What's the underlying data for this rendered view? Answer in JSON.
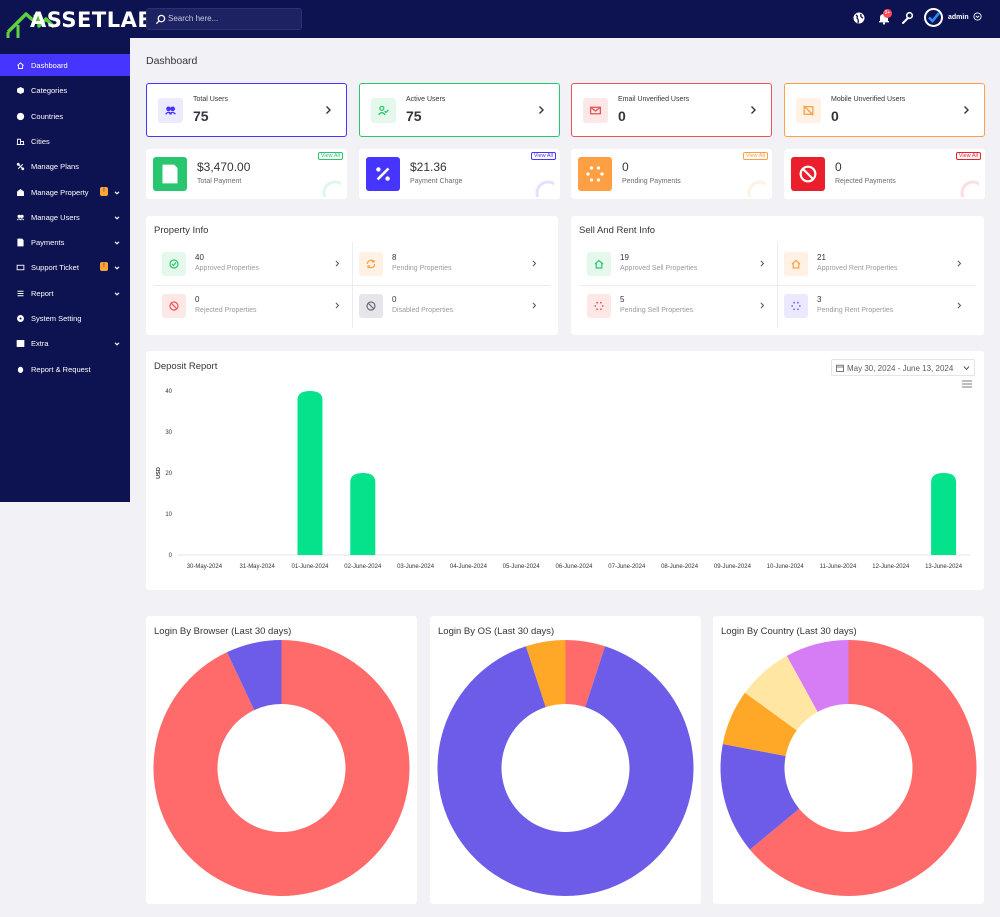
{
  "brand": {
    "name": "ASSETLAB"
  },
  "header": {
    "search_placeholder": "Search here...",
    "notification_count": "9+",
    "user_name": "admin"
  },
  "sidebar": {
    "items": [
      {
        "label": "Dashboard",
        "icon": "home-icon",
        "active": true
      },
      {
        "label": "Categories",
        "icon": "box-icon"
      },
      {
        "label": "Countries",
        "icon": "globe-icon"
      },
      {
        "label": "Cities",
        "icon": "city-icon"
      },
      {
        "label": "Manage Plans",
        "icon": "plans-icon"
      },
      {
        "label": "Manage Property",
        "icon": "building-icon",
        "badge": "!",
        "dropdown": true
      },
      {
        "label": "Manage Users",
        "icon": "users-icon",
        "dropdown": true
      },
      {
        "label": "Payments",
        "icon": "payments-icon",
        "dropdown": true
      },
      {
        "label": "Support Ticket",
        "icon": "ticket-icon",
        "badge": "!",
        "dropdown": true
      },
      {
        "label": "Report",
        "icon": "list-icon",
        "dropdown": true
      },
      {
        "label": "System Setting",
        "icon": "settings-icon"
      },
      {
        "label": "Extra",
        "icon": "server-icon",
        "dropdown": true
      },
      {
        "label": "Report & Request",
        "icon": "bug-icon"
      }
    ]
  },
  "page": {
    "title": "Dashboard"
  },
  "widgets": [
    {
      "label": "Total Users",
      "value": "75",
      "color": "#4634ff",
      "bg": "#eceaff",
      "icon": "users-icon"
    },
    {
      "label": "Active Users",
      "value": "75",
      "color": "#28c76f",
      "bg": "#e4f8ec",
      "icon": "user-check-icon"
    },
    {
      "label": "Email Unverified Users",
      "value": "0",
      "color": "#ea5455",
      "bg": "#fde7e7",
      "icon": "envelope-icon"
    },
    {
      "label": "Mobile Unverified Users",
      "value": "0",
      "color": "#ff9f43",
      "bg": "#fff1e3",
      "icon": "mobile-off-icon"
    }
  ],
  "payments": [
    {
      "value": "$3,470.00",
      "label": "Total Payment",
      "view": "View All",
      "color": "#28c76f",
      "icon": "hand-money-icon"
    },
    {
      "value": "$21.36",
      "label": "Payment Charge",
      "view": "View All",
      "color": "#4634ff",
      "icon": "percent-icon"
    },
    {
      "value": "0",
      "label": "Pending Payments",
      "view": "View All",
      "color": "#ff9f43",
      "icon": "spinner-icon"
    },
    {
      "value": "0",
      "label": "Rejected Payments",
      "view": "View All",
      "color": "#ea1e2c",
      "icon": "ban-icon"
    }
  ],
  "property_info": {
    "title": "Property Info",
    "cells": [
      {
        "value": "40",
        "label": "Approved Properties",
        "color": "#28c76f",
        "bg": "#e4f8ec",
        "icon": "check-circle-icon"
      },
      {
        "value": "8",
        "label": "Pending Properties",
        "color": "#ff9f43",
        "bg": "#fff1e3",
        "icon": "sync-icon"
      },
      {
        "value": "0",
        "label": "Rejected Properties",
        "color": "#ea5455",
        "bg": "#fde7e7",
        "icon": "ban-icon"
      },
      {
        "value": "0",
        "label": "Disabled Properties",
        "color": "#6b6b76",
        "bg": "#e6e6ea",
        "icon": "ban-icon"
      }
    ]
  },
  "sell_rent_info": {
    "title": "Sell And Rent Info",
    "cells": [
      {
        "value": "19",
        "label": "Approved Sell Properties",
        "color": "#28c76f",
        "bg": "#e4f8ec",
        "icon": "home-icon"
      },
      {
        "value": "21",
        "label": "Approved Rent Properties",
        "color": "#ff9f43",
        "bg": "#fff1e3",
        "icon": "home-icon"
      },
      {
        "value": "5",
        "label": "Pending Sell Properties",
        "color": "#ea5455",
        "bg": "#fde7e7",
        "icon": "spinner-icon"
      },
      {
        "value": "3",
        "label": "Pending Rent Properties",
        "color": "#7367f0",
        "bg": "#ebe9ff",
        "icon": "spinner-icon"
      }
    ]
  },
  "deposit_report": {
    "title": "Deposit Report",
    "date_range": "May 30, 2024 - June 13, 2024"
  },
  "chart_data": [
    {
      "type": "bar",
      "title": "Deposit Report",
      "ylabel": "USD",
      "ylim": [
        0,
        40
      ],
      "yticks": [
        "0",
        "10",
        "20",
        "30",
        "40"
      ],
      "categories": [
        "30-May-2024",
        "31-May-2024",
        "01-June-2024",
        "02-June-2024",
        "03-June-2024",
        "04-June-2024",
        "05-June-2024",
        "06-June-2024",
        "07-June-2024",
        "08-June-2024",
        "09-June-2024",
        "10-June-2024",
        "11-June-2024",
        "12-June-2024",
        "13-June-2024"
      ],
      "values": [
        0,
        0,
        40,
        20,
        0,
        0,
        0,
        0,
        0,
        0,
        0,
        0,
        0,
        0,
        20
      ],
      "color": "#04e38c",
      "grid": false
    },
    {
      "type": "pie",
      "title": "Login By Browser (Last 30 days)",
      "slices": [
        {
          "value": 93,
          "color": "#ff6b6b"
        },
        {
          "value": 7,
          "color": "#6c5ce7"
        }
      ]
    },
    {
      "type": "pie",
      "title": "Login By OS (Last 30 days)",
      "slices": [
        {
          "value": 5,
          "color": "#ff6b6b"
        },
        {
          "value": 90,
          "color": "#6c5ce7"
        },
        {
          "value": 5,
          "color": "#ffa726"
        }
      ]
    },
    {
      "type": "pie",
      "title": "Login By Country (Last 30 days)",
      "slices": [
        {
          "value": 64,
          "color": "#ff6b6b"
        },
        {
          "value": 14,
          "color": "#6c5ce7"
        },
        {
          "value": 7,
          "color": "#ffa726"
        },
        {
          "value": 7,
          "color": "#ffe7a3"
        },
        {
          "value": 8,
          "color": "#d67cf4"
        }
      ]
    }
  ]
}
